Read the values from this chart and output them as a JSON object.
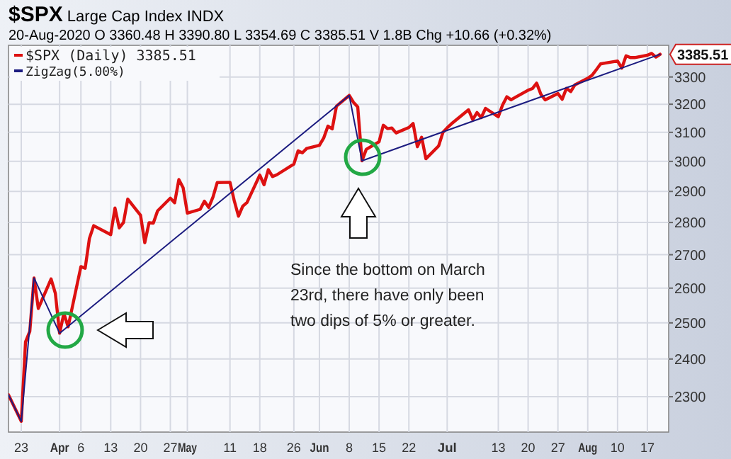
{
  "chart_data": {
    "type": "line",
    "title": "$SPX Large Cap Index INDX",
    "subtitle": "20-Aug-2020   O 3360.48  H 3390.80  L 3354.69  C 3385.51  V 1.8B  Chg +10.66 (+0.32%)",
    "log": "y",
    "grid": true,
    "legend": "top left",
    "marker": "none",
    "line_style": "solid",
    "xlim": [
      "2020-03-20",
      "2020-08-22"
    ],
    "ylim": [
      2210,
      3420
    ],
    "xticks": [
      {
        "value": "2020-03-23",
        "label": "23"
      },
      {
        "value": "2020-04-01",
        "label": "Apr"
      },
      {
        "value": "2020-04-06",
        "label": "6"
      },
      {
        "value": "2020-04-13",
        "label": "13"
      },
      {
        "value": "2020-04-20",
        "label": "20"
      },
      {
        "value": "2020-04-27",
        "label": "27"
      },
      {
        "value": "2020-05-01",
        "label": "May"
      },
      {
        "value": "2020-05-11",
        "label": "11"
      },
      {
        "value": "2020-05-18",
        "label": "18"
      },
      {
        "value": "2020-05-26",
        "label": "26"
      },
      {
        "value": "2020-06-01",
        "label": "Jun"
      },
      {
        "value": "2020-06-08",
        "label": "8"
      },
      {
        "value": "2020-06-15",
        "label": "15"
      },
      {
        "value": "2020-06-22",
        "label": "22"
      },
      {
        "value": "2020-07-01",
        "label": "Jul"
      },
      {
        "value": "2020-07-13",
        "label": "13"
      },
      {
        "value": "2020-07-20",
        "label": "20"
      },
      {
        "value": "2020-07-27",
        "label": "27"
      },
      {
        "value": "2020-08-03",
        "label": "Aug"
      },
      {
        "value": "2020-08-10",
        "label": "10"
      },
      {
        "value": "2020-08-17",
        "label": "17"
      }
    ],
    "yticks": [
      2300,
      2400,
      2500,
      2600,
      2700,
      2800,
      2900,
      3000,
      3100,
      3200,
      3300
    ],
    "series": [
      {
        "name": "$SPX (Daily) 3385.51",
        "color": "#dd1111",
        "x": [
          "2020-03-20",
          "2020-03-23",
          "2020-03-24",
          "2020-03-25",
          "2020-03-26",
          "2020-03-27",
          "2020-03-30",
          "2020-03-31",
          "2020-04-01",
          "2020-04-02",
          "2020-04-03",
          "2020-04-06",
          "2020-04-07",
          "2020-04-08",
          "2020-04-09",
          "2020-04-13",
          "2020-04-14",
          "2020-04-15",
          "2020-04-16",
          "2020-04-17",
          "2020-04-20",
          "2020-04-21",
          "2020-04-22",
          "2020-04-23",
          "2020-04-24",
          "2020-04-27",
          "2020-04-28",
          "2020-04-29",
          "2020-04-30",
          "2020-05-01",
          "2020-05-04",
          "2020-05-05",
          "2020-05-06",
          "2020-05-07",
          "2020-05-08",
          "2020-05-11",
          "2020-05-12",
          "2020-05-13",
          "2020-05-14",
          "2020-05-15",
          "2020-05-18",
          "2020-05-19",
          "2020-05-20",
          "2020-05-21",
          "2020-05-22",
          "2020-05-26",
          "2020-05-27",
          "2020-05-28",
          "2020-05-29",
          "2020-06-01",
          "2020-06-02",
          "2020-06-03",
          "2020-06-04",
          "2020-06-05",
          "2020-06-08",
          "2020-06-09",
          "2020-06-10",
          "2020-06-11",
          "2020-06-12",
          "2020-06-15",
          "2020-06-16",
          "2020-06-17",
          "2020-06-18",
          "2020-06-19",
          "2020-06-22",
          "2020-06-23",
          "2020-06-24",
          "2020-06-25",
          "2020-06-26",
          "2020-06-29",
          "2020-06-30",
          "2020-07-01",
          "2020-07-02",
          "2020-07-06",
          "2020-07-07",
          "2020-07-08",
          "2020-07-09",
          "2020-07-10",
          "2020-07-13",
          "2020-07-14",
          "2020-07-15",
          "2020-07-16",
          "2020-07-17",
          "2020-07-20",
          "2020-07-21",
          "2020-07-22",
          "2020-07-23",
          "2020-07-24",
          "2020-07-27",
          "2020-07-28",
          "2020-07-29",
          "2020-07-30",
          "2020-07-31",
          "2020-08-03",
          "2020-08-04",
          "2020-08-05",
          "2020-08-06",
          "2020-08-07",
          "2020-08-10",
          "2020-08-11",
          "2020-08-12",
          "2020-08-13",
          "2020-08-14",
          "2020-08-17",
          "2020-08-18",
          "2020-08-19",
          "2020-08-20"
        ],
        "values": [
          2305,
          2237,
          2447,
          2476,
          2630,
          2541,
          2627,
          2585,
          2471,
          2527,
          2489,
          2664,
          2659,
          2750,
          2790,
          2762,
          2846,
          2783,
          2800,
          2875,
          2823,
          2737,
          2799,
          2798,
          2837,
          2878,
          2863,
          2939,
          2912,
          2830,
          2842,
          2868,
          2848,
          2881,
          2929,
          2930,
          2870,
          2820,
          2852,
          2864,
          2954,
          2922,
          2972,
          2949,
          2955,
          2991,
          3036,
          3029,
          3044,
          3055,
          3080,
          3122,
          3112,
          3193,
          3232,
          3207,
          3190,
          3002,
          3041,
          3067,
          3125,
          3113,
          3115,
          3098,
          3117,
          3131,
          3050,
          3083,
          3009,
          3053,
          3100,
          3116,
          3130,
          3180,
          3145,
          3170,
          3152,
          3185,
          3155,
          3197,
          3227,
          3216,
          3225,
          3251,
          3257,
          3277,
          3236,
          3216,
          3239,
          3218,
          3258,
          3246,
          3271,
          3295,
          3306,
          3327,
          3349,
          3352,
          3360,
          3333,
          3380,
          3373,
          3373,
          3382,
          3389,
          3375,
          3385.51
        ]
      },
      {
        "name": "ZigZag(5.00%)",
        "color": "#1c1c80",
        "x": [
          "2020-03-20",
          "2020-03-23",
          "2020-03-26",
          "2020-04-01",
          "2020-06-08",
          "2020-06-11",
          "2020-08-20"
        ],
        "values": [
          2305,
          2237,
          2630,
          2471,
          3232,
          3002,
          3385.51
        ]
      }
    ],
    "annotations": [
      {
        "text": "3385.51",
        "x": "2020-08-20",
        "y": 3385.51
      },
      "Since the bottom on March\n23rd, there have only been\ntwo dips of 5% or greater."
    ]
  }
}
